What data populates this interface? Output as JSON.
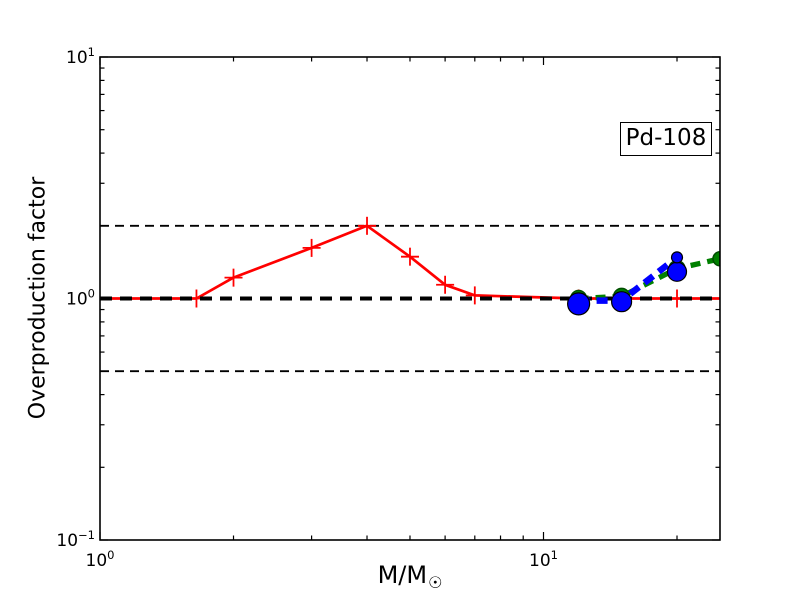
{
  "labels": {
    "xlabel_main": "M/M",
    "xlabel_sub": "☉"
  },
  "chart_data": {
    "type": "line",
    "title": "",
    "annotation": "Pd-108",
    "xlabel": "M/M☉",
    "ylabel": "Overproduction factor",
    "x_scale": "log",
    "y_scale": "log",
    "xlim": [
      1,
      25
    ],
    "ylim": [
      0.1,
      10
    ],
    "grid": false,
    "legend": "none",
    "x_major_ticks": [
      {
        "value": 1,
        "exp": "0"
      },
      {
        "value": 10,
        "exp": "1"
      }
    ],
    "x_minor_ticks": [
      2,
      3,
      4,
      5,
      6,
      7,
      8,
      9,
      20
    ],
    "y_major_ticks": [
      {
        "value": 0.1,
        "exp": "−1"
      },
      {
        "value": 1,
        "exp": "0"
      },
      {
        "value": 10,
        "exp": "1"
      }
    ],
    "y_minor_ticks": [
      0.2,
      0.3,
      0.4,
      0.5,
      0.6,
      0.7,
      0.8,
      0.9,
      2,
      3,
      4,
      5,
      6,
      7,
      8,
      9
    ],
    "reference_lines": [
      {
        "y": 2.0,
        "color": "#000000",
        "width": 1.8,
        "dash": [
          9,
          6
        ],
        "z": 1
      },
      {
        "y": 0.5,
        "color": "#000000",
        "width": 1.8,
        "dash": [
          9,
          6
        ],
        "z": 1
      },
      {
        "y": 1.0,
        "color": "#000000",
        "width": 4,
        "dash": [
          12,
          8
        ],
        "z": 3
      }
    ],
    "series": [
      {
        "name": "red-solid-plus-series",
        "color": "#ff0000",
        "line_style": "solid",
        "width": 2.7,
        "dash": null,
        "marker": "plus",
        "marker_stroke_width": 1.8,
        "z": 2,
        "line_points": [
          [
            1.0,
            1.0
          ],
          [
            1.65,
            1.0
          ],
          [
            2.0,
            1.22
          ],
          [
            3.0,
            1.62
          ],
          [
            4.0,
            2.0
          ],
          [
            5.0,
            1.49
          ],
          [
            6.0,
            1.14
          ],
          [
            7.0,
            1.03
          ],
          [
            12.0,
            1.0
          ],
          [
            15.0,
            1.0
          ],
          [
            20.0,
            1.0
          ],
          [
            25.0,
            1.0
          ]
        ],
        "markers": [
          {
            "x": 1.65,
            "y": 1.0,
            "r": 9
          },
          {
            "x": 2.0,
            "y": 1.22,
            "r": 9
          },
          {
            "x": 3.0,
            "y": 1.62,
            "r": 9
          },
          {
            "x": 4.0,
            "y": 2.0,
            "r": 9
          },
          {
            "x": 5.0,
            "y": 1.49,
            "r": 9
          },
          {
            "x": 6.0,
            "y": 1.14,
            "r": 9
          },
          {
            "x": 7.0,
            "y": 1.03,
            "r": 9
          },
          {
            "x": 12.0,
            "y": 1.0,
            "r": 9
          },
          {
            "x": 15.0,
            "y": 1.0,
            "r": 9
          },
          {
            "x": 20.0,
            "y": 1.0,
            "r": 9
          }
        ]
      },
      {
        "name": "green-dashed-circle-series",
        "color": "#008000",
        "edge_color": "#004d00",
        "edge_width": 1.5,
        "line_style": "dashed",
        "width": 5.3,
        "dash": [
          10,
          7
        ],
        "marker": "circle",
        "z": 4,
        "line_points": [
          [
            12.0,
            1.0
          ],
          [
            15.0,
            1.02
          ],
          [
            20.0,
            1.33
          ],
          [
            25.0,
            1.46
          ]
        ],
        "markers": [
          {
            "x": 12.0,
            "y": 1.0,
            "r": 8
          },
          {
            "x": 15.0,
            "y": 1.02,
            "r": 8
          },
          {
            "x": 20.0,
            "y": 1.33,
            "r": 8
          },
          {
            "x": 25.0,
            "y": 1.46,
            "r": 7
          }
        ]
      },
      {
        "name": "blue-dashed-circle-series",
        "color": "#0000ff",
        "edge_color": "#000000",
        "edge_width": 1.2,
        "line_style": "dashed",
        "width": 6.5,
        "dash": [
          11,
          7
        ],
        "marker": "circle",
        "z": 5,
        "line_points": [
          [
            12.0,
            0.98
          ],
          [
            15.0,
            0.98
          ],
          [
            20.0,
            1.48
          ]
        ],
        "markers": [
          {
            "x": 12.0,
            "y": 0.95,
            "r": 11
          },
          {
            "x": 15.0,
            "y": 0.97,
            "r": 10
          },
          {
            "x": 20.0,
            "y": 1.29,
            "r": 9.5
          },
          {
            "x": 20.0,
            "y": 1.48,
            "r": 5.5
          }
        ]
      }
    ]
  }
}
